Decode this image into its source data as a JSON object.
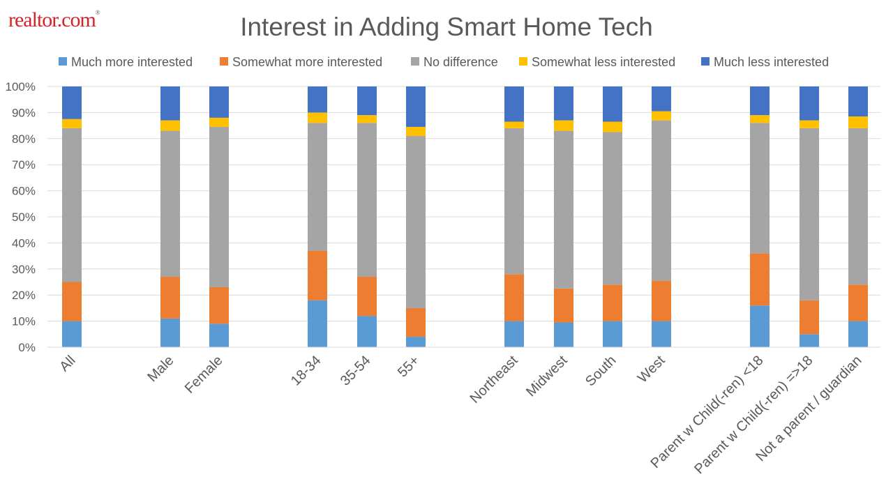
{
  "logo": {
    "text": "realtor.com",
    "mark": "®"
  },
  "colors": {
    "much_more": "#5b9bd5",
    "somewhat_more": "#ed7d31",
    "no_diff": "#a5a5a5",
    "somewhat_less": "#ffc000",
    "much_less": "#4472c4",
    "grid": "#d9d9d9",
    "text": "#595959"
  },
  "chart_data": {
    "type": "bar",
    "stacked": true,
    "title": "Interest in Adding Smart Home Tech",
    "xlabel": "",
    "ylabel": "",
    "ylim": [
      0,
      100
    ],
    "yticks": [
      "0%",
      "10%",
      "20%",
      "30%",
      "40%",
      "50%",
      "60%",
      "70%",
      "80%",
      "90%",
      "100%"
    ],
    "grid": true,
    "legend": "top",
    "categories": [
      "All",
      "Male",
      "Female",
      "18-34",
      "35-54",
      "55+",
      "Northeast",
      "Midwest",
      "South",
      "West",
      "Parent w Child(-ren) <18",
      "Parent w Child(-ren) =>18",
      "Not a parent / guardian"
    ],
    "series": [
      {
        "name": "Much more interested",
        "color": "#5b9bd5",
        "values": [
          10,
          11,
          9,
          18,
          12,
          4,
          10,
          9.5,
          10,
          10,
          16,
          5,
          10
        ]
      },
      {
        "name": "Somewhat more interested",
        "color": "#ed7d31",
        "values": [
          15,
          16,
          14,
          19,
          15,
          11,
          18,
          13,
          14,
          15.5,
          20,
          13,
          14
        ]
      },
      {
        "name": "No difference",
        "color": "#a5a5a5",
        "values": [
          59,
          56,
          61.5,
          49,
          59,
          66,
          56,
          60.5,
          58.5,
          61.5,
          50,
          66,
          60
        ]
      },
      {
        "name": "Somewhat less interested",
        "color": "#ffc000",
        "values": [
          3.5,
          4,
          3.5,
          4,
          3,
          3.5,
          2.5,
          4,
          4,
          3.5,
          3,
          3,
          4.5
        ]
      },
      {
        "name": "Much less interested",
        "color": "#4472c4",
        "values": [
          12.5,
          13,
          12,
          10,
          11,
          15.5,
          13.5,
          13,
          13.5,
          9.5,
          11,
          13,
          11.5
        ]
      }
    ]
  }
}
